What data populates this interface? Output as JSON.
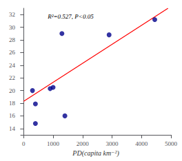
{
  "chart_data": {
    "type": "scatter",
    "xlabel": "PD(capita km⁻²)",
    "series": [
      {
        "type": "scatter",
        "color": "#00008B",
        "x": [
          300,
          400,
          400,
          900,
          1000,
          1300,
          1400,
          2900,
          4450
        ],
        "values": [
          20.0,
          17.9,
          14.8,
          20.3,
          20.5,
          29.0,
          16.0,
          28.8,
          31.2
        ]
      },
      {
        "type": "line",
        "color": "red",
        "x": [
          0,
          4900
        ],
        "values": [
          18.3,
          33.0
        ]
      }
    ],
    "annotations": [
      {
        "text": "R²=0.527, P<0.05",
        "x": 820,
        "y": 31.7
      }
    ],
    "xlim": [
      -100,
      5000
    ],
    "ylim": [
      13,
      33
    ],
    "xticks": [
      0,
      1000,
      2000,
      3000,
      4000,
      5000
    ],
    "yticks": [
      14,
      16,
      18,
      20,
      22,
      24,
      26,
      28,
      30,
      32
    ],
    "grid": false
  }
}
